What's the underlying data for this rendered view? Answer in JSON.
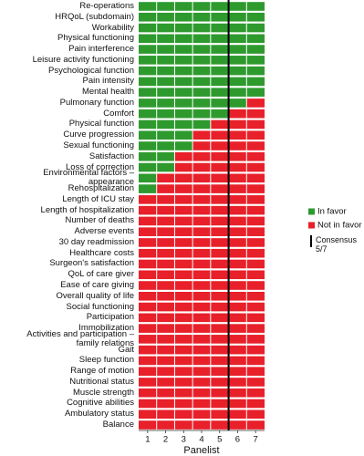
{
  "chart_data": {
    "type": "stacked-barh",
    "categories": [
      "Re-operations",
      "HRQoL (subdomain)",
      "Workability",
      "Physical functioning",
      "Pain interference",
      "Leisure activity functioning",
      "Psychological function",
      "Pain intensity",
      "Mental health",
      "Pulmonary function",
      "Comfort",
      "Physical function",
      "Curve progression",
      "Sexual functioning",
      "Satisfaction",
      "Loss of correction",
      "Environmental factors – appearance",
      "Rehospitalization",
      "Length of ICU stay",
      "Length of hospitalization",
      "Number of deaths",
      "Adverse events",
      "30 day readmission",
      "Healthcare costs",
      "Surgeon's satisfaction",
      "QoL of care giver",
      "Ease of care giving",
      "Overall quality of life",
      "Social functioning",
      "Participation",
      "Immobilization",
      "Activities and participation –\nfamily relations",
      "Gait",
      "Sleep function",
      "Range of motion",
      "Nutritional status",
      "Muscle strength",
      "Cognitive abilities",
      "Ambulatory status",
      "Balance"
    ],
    "series": [
      {
        "name": "In favor",
        "color": "#2e9a2e",
        "values": [
          7,
          7,
          7,
          7,
          7,
          7,
          7,
          7,
          7,
          6,
          5,
          4,
          3,
          3,
          2,
          2,
          1,
          1,
          0,
          0,
          0,
          0,
          0,
          0,
          0,
          0,
          0,
          0,
          0,
          0,
          0,
          0,
          0,
          0,
          0,
          0,
          0,
          0,
          0,
          0
        ]
      },
      {
        "name": "Not in favor",
        "color": "#e8202a",
        "values": [
          0,
          0,
          0,
          0,
          0,
          0,
          0,
          0,
          0,
          1,
          2,
          3,
          4,
          4,
          5,
          5,
          6,
          6,
          7,
          7,
          7,
          7,
          7,
          7,
          7,
          7,
          7,
          7,
          7,
          7,
          7,
          7,
          7,
          7,
          7,
          7,
          7,
          7,
          7,
          7
        ]
      }
    ],
    "panelists": [
      "1",
      "2",
      "3",
      "4",
      "5",
      "6",
      "7"
    ],
    "x_label": "Panelist",
    "consensus": {
      "label": "Consensus\n5/7",
      "value": 5,
      "color": "#000000"
    }
  }
}
